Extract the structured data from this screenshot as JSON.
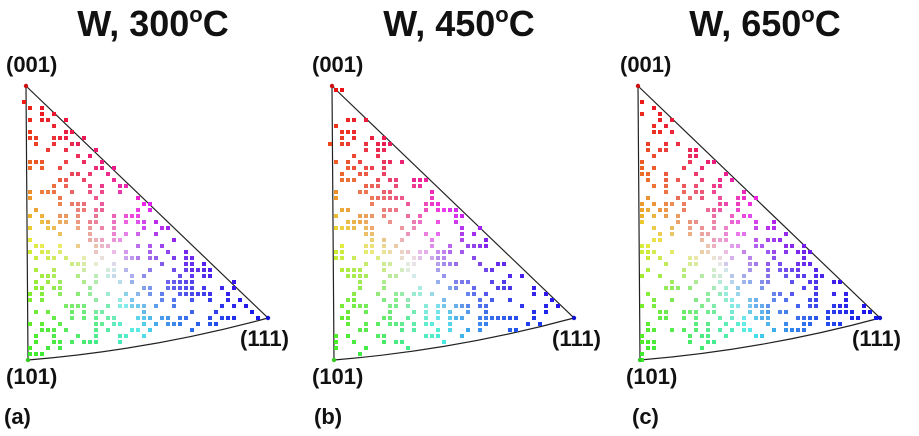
{
  "panels": [
    {
      "title_main": "W, 300",
      "title_sup": "o",
      "title_end": "C",
      "label": "(a)",
      "seed": 11
    },
    {
      "title_main": "W, 450",
      "title_sup": "o",
      "title_end": "C",
      "label": "(b)",
      "seed": 23
    },
    {
      "title_main": "W, 650",
      "title_sup": "o",
      "title_end": "C",
      "label": "(c)",
      "seed": 37
    }
  ],
  "corners": {
    "top": "(001)",
    "bottom_left": "(101)",
    "right": "(111)"
  },
  "colors": {
    "001": "#d01010",
    "101": "#33cc22",
    "111": "#1010d0"
  }
}
